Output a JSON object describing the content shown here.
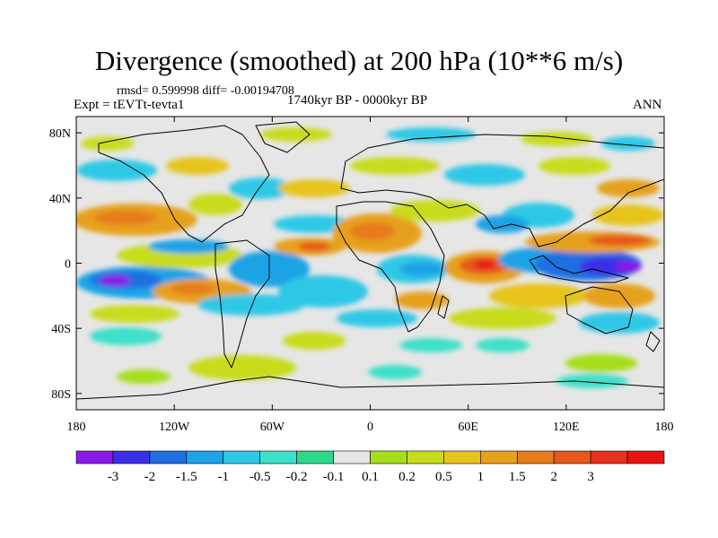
{
  "header": {
    "title": "Divergence (smoothed) at 200 hPa (10**6 m/s)",
    "stats": "rmsd= 0.599998 diff= -0.00194708",
    "experiment": "Expt = tEVTt-tevta1",
    "period": "1740kyr BP - 0000kyr BP",
    "season": "ANN"
  },
  "map": {
    "projection": "cylindrical equidistant",
    "lon_range": [
      -180,
      180
    ],
    "lat_range": [
      -90,
      90
    ],
    "background_color": "#e6e6e6",
    "lat_ticks": [
      {
        "lat": 80,
        "label": "80N"
      },
      {
        "lat": 40,
        "label": "40N"
      },
      {
        "lat": 0,
        "label": "0"
      },
      {
        "lat": -40,
        "label": "40S"
      },
      {
        "lat": -80,
        "label": "80S"
      }
    ],
    "lon_ticks": [
      {
        "lon": -180,
        "label": "180"
      },
      {
        "lon": -120,
        "label": "120W"
      },
      {
        "lon": -60,
        "label": "60W"
      },
      {
        "lon": 0,
        "label": "0"
      },
      {
        "lon": 60,
        "label": "60E"
      },
      {
        "lon": 120,
        "label": "120E"
      },
      {
        "lon": 180,
        "label": "180"
      }
    ]
  },
  "colorbar": {
    "colors": [
      "#8a19e6",
      "#3b2ee6",
      "#1f6fe0",
      "#1ea3e6",
      "#2ec8e6",
      "#3de0c8",
      "#2ed88a",
      "#e6e6e6",
      "#a6de1e",
      "#c8dc1e",
      "#e6c41e",
      "#e6a11e",
      "#e67c1e",
      "#e6571e",
      "#e6321e",
      "#e61414"
    ],
    "labels": [
      "-3",
      "-2",
      "-1.5",
      "-1",
      "-0.5",
      "-0.2",
      "-0.1",
      "0.1",
      "0.2",
      "0.5",
      "1",
      "1.5",
      "2",
      "3"
    ]
  }
}
